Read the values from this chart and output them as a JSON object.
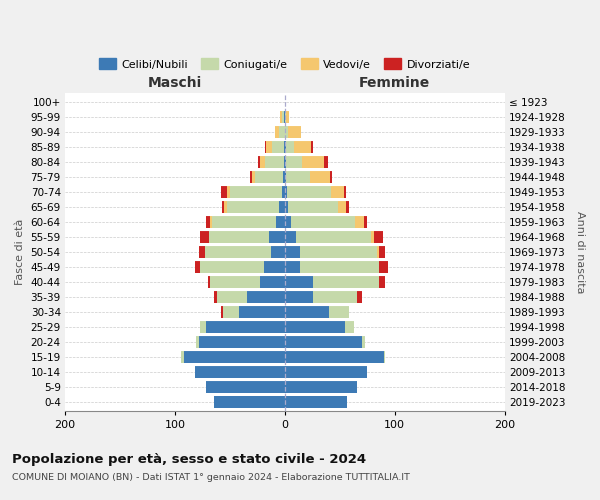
{
  "age_groups": [
    "0-4",
    "5-9",
    "10-14",
    "15-19",
    "20-24",
    "25-29",
    "30-34",
    "35-39",
    "40-44",
    "45-49",
    "50-54",
    "55-59",
    "60-64",
    "65-69",
    "70-74",
    "75-79",
    "80-84",
    "85-89",
    "90-94",
    "95-99",
    "100+"
  ],
  "birth_years": [
    "2019-2023",
    "2014-2018",
    "2009-2013",
    "2004-2008",
    "1999-2003",
    "1994-1998",
    "1989-1993",
    "1984-1988",
    "1979-1983",
    "1974-1978",
    "1969-1973",
    "1964-1968",
    "1959-1963",
    "1954-1958",
    "1949-1953",
    "1944-1948",
    "1939-1943",
    "1934-1938",
    "1929-1933",
    "1924-1928",
    "≤ 1923"
  ],
  "maschi": {
    "celibi": [
      64,
      72,
      82,
      92,
      78,
      72,
      42,
      34,
      23,
      19,
      13,
      14,
      8,
      5,
      3,
      2,
      1,
      1,
      0,
      1,
      0
    ],
    "coniugati": [
      0,
      0,
      0,
      2,
      3,
      5,
      14,
      28,
      45,
      58,
      60,
      55,
      58,
      48,
      47,
      25,
      17,
      11,
      5,
      2,
      0
    ],
    "vedovi": [
      0,
      0,
      0,
      0,
      0,
      0,
      0,
      0,
      0,
      0,
      0,
      0,
      2,
      2,
      3,
      3,
      5,
      5,
      4,
      1,
      0
    ],
    "divorziati": [
      0,
      0,
      0,
      0,
      0,
      0,
      2,
      2,
      2,
      5,
      5,
      8,
      4,
      2,
      5,
      2,
      1,
      1,
      0,
      0,
      0
    ]
  },
  "femmine": {
    "nubili": [
      57,
      66,
      75,
      90,
      70,
      55,
      40,
      26,
      26,
      14,
      14,
      10,
      6,
      3,
      2,
      1,
      1,
      1,
      0,
      0,
      0
    ],
    "coniugate": [
      0,
      0,
      0,
      1,
      3,
      8,
      18,
      40,
      60,
      72,
      70,
      68,
      58,
      45,
      40,
      22,
      15,
      7,
      3,
      1,
      0
    ],
    "vedove": [
      0,
      0,
      0,
      0,
      0,
      0,
      0,
      0,
      0,
      0,
      2,
      3,
      8,
      8,
      12,
      18,
      20,
      16,
      12,
      3,
      0
    ],
    "divorziate": [
      0,
      0,
      0,
      0,
      0,
      0,
      0,
      4,
      5,
      8,
      5,
      8,
      3,
      2,
      2,
      2,
      3,
      2,
      0,
      0,
      0
    ]
  },
  "colors": {
    "celibi": "#3d7ab5",
    "coniugati": "#c5d9aa",
    "vedovi": "#f5c76e",
    "divorziati": "#cc2222"
  },
  "xlim": 200,
  "title": "Popolazione per età, sesso e stato civile - 2024",
  "subtitle": "COMUNE DI MOIANO (BN) - Dati ISTAT 1° gennaio 2024 - Elaborazione TUTTITALIA.IT",
  "maschi_label": "Maschi",
  "femmine_label": "Femmine",
  "fasce_label": "Fasce di età",
  "anni_label": "Anni di nascita",
  "legend_labels": [
    "Celibi/Nubili",
    "Coniugati/e",
    "Vedovi/e",
    "Divorziati/e"
  ],
  "bg_color": "#f0f0f0",
  "plot_bg": "#ffffff"
}
